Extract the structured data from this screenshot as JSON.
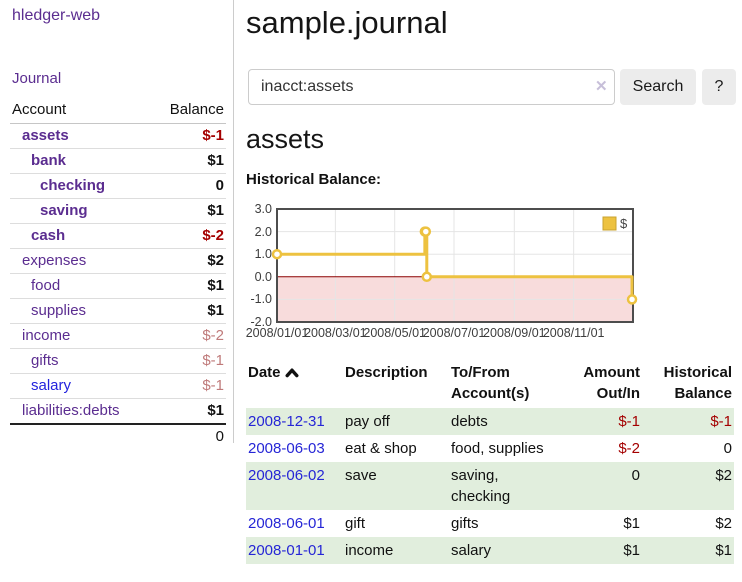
{
  "colors": {
    "link_purple": "#5b2d90",
    "link_blue": "#2323dd",
    "negative_strong": "#a40000",
    "negative_soft": "#bf7a7a",
    "series_yellow": "#edc240",
    "zero_line_red": "#8b0000",
    "negative_region_pink": "#f8dcdc",
    "row_green": "#e1eedd"
  },
  "sidebar": {
    "brand": "hledger-web",
    "nav": {
      "journal": "Journal"
    },
    "accounts": {
      "headers": {
        "account": "Account",
        "balance": "Balance"
      },
      "rows": [
        {
          "name": "assets",
          "balance": "$-1",
          "indent": 1,
          "name_style": "bold",
          "balance_style": "neg-strong"
        },
        {
          "name": "bank",
          "balance": "$1",
          "indent": 2,
          "name_style": "bold",
          "balance_style": "pos"
        },
        {
          "name": "checking",
          "balance": "0",
          "indent": 3,
          "name_style": "bold",
          "balance_style": "pos"
        },
        {
          "name": "saving",
          "balance": "$1",
          "indent": 3,
          "name_style": "bold",
          "balance_style": "pos"
        },
        {
          "name": "cash",
          "balance": "$-2",
          "indent": 2,
          "name_style": "bold",
          "balance_style": "neg-strong"
        },
        {
          "name": "expenses",
          "balance": "$2",
          "indent": 1,
          "name_style": "",
          "balance_style": "pos"
        },
        {
          "name": "food",
          "balance": "$1",
          "indent": 2,
          "name_style": "",
          "balance_style": "pos"
        },
        {
          "name": "supplies",
          "balance": "$1",
          "indent": 2,
          "name_style": "",
          "balance_style": "pos"
        },
        {
          "name": "income",
          "balance": "$-2",
          "indent": 1,
          "name_style": "",
          "balance_style": "neg-soft"
        },
        {
          "name": "gifts",
          "balance": "$-1",
          "indent": 2,
          "name_style": "",
          "balance_style": "neg-soft"
        },
        {
          "name": "salary",
          "balance": "$-1",
          "indent": 2,
          "name_style": "blue",
          "balance_style": "neg-soft"
        },
        {
          "name": "liabilities:debts",
          "balance": "$1",
          "indent": 1,
          "name_style": "",
          "balance_style": "pos"
        }
      ],
      "total": "0"
    }
  },
  "main": {
    "title": "sample.journal",
    "search": {
      "value": "inacct:assets",
      "clear_icon": "✕",
      "search_button": "Search",
      "help_button": "?"
    },
    "account_heading": "assets",
    "chart_heading": "Historical Balance:"
  },
  "chart_data": {
    "type": "line",
    "step": true,
    "title": "Historical Balance",
    "xlabel": "",
    "ylabel": "",
    "xlim": [
      "2008-01-01",
      "2009-01-01"
    ],
    "ylim": [
      -2,
      3
    ],
    "grid": true,
    "legend_position": "top-right",
    "zero_line_color": "#8b0000",
    "negative_region_color": "#f8dcdc",
    "x_ticks": [
      {
        "date": "2008-01-01",
        "label": "2008/01/01"
      },
      {
        "date": "2008-03-01",
        "label": "2008/03/01"
      },
      {
        "date": "2008-05-01",
        "label": "2008/05/01"
      },
      {
        "date": "2008-07-01",
        "label": "2008/07/01"
      },
      {
        "date": "2008-09-01",
        "label": "2008/09/01"
      },
      {
        "date": "2008-11-01",
        "label": "2008/11/01"
      }
    ],
    "y_ticks": [
      {
        "value": 3,
        "label": "3.0"
      },
      {
        "value": 2,
        "label": "2.0"
      },
      {
        "value": 1,
        "label": "1.0"
      },
      {
        "value": 0,
        "label": "0.0"
      },
      {
        "value": -1,
        "label": "-1.0"
      },
      {
        "value": -2,
        "label": "-2.0"
      }
    ],
    "series": [
      {
        "name": "$",
        "color": "#edc240",
        "points": [
          [
            "2008-01-01",
            1
          ],
          [
            "2008-06-01",
            2
          ],
          [
            "2008-06-02",
            2
          ],
          [
            "2008-06-03",
            0
          ],
          [
            "2008-12-31",
            -1
          ]
        ]
      }
    ]
  },
  "register": {
    "headers": {
      "date": "Date",
      "description": "Description",
      "accounts": "To/From Account(s)",
      "amount": "Amount Out/In",
      "balance": "Historical Balance"
    },
    "sort": {
      "column": "date",
      "direction": "ascending"
    },
    "rows": [
      {
        "date": "2008-12-31",
        "description": "pay off",
        "accounts": "debts",
        "amount": "$-1",
        "amount_style": "neg",
        "balance": "$-1",
        "balance_style": "neg"
      },
      {
        "date": "2008-06-03",
        "description": "eat & shop",
        "accounts": "food, supplies",
        "amount": "$-2",
        "amount_style": "neg",
        "balance": "0",
        "balance_style": "pos"
      },
      {
        "date": "2008-06-02",
        "description": "save",
        "accounts": "saving, checking",
        "amount": "0",
        "amount_style": "pos",
        "balance": "$2",
        "balance_style": "pos"
      },
      {
        "date": "2008-06-01",
        "description": "gift",
        "accounts": "gifts",
        "amount": "$1",
        "amount_style": "pos",
        "balance": "$2",
        "balance_style": "pos"
      },
      {
        "date": "2008-01-01",
        "description": "income",
        "accounts": "salary",
        "amount": "$1",
        "amount_style": "pos",
        "balance": "$1",
        "balance_style": "pos"
      }
    ]
  }
}
